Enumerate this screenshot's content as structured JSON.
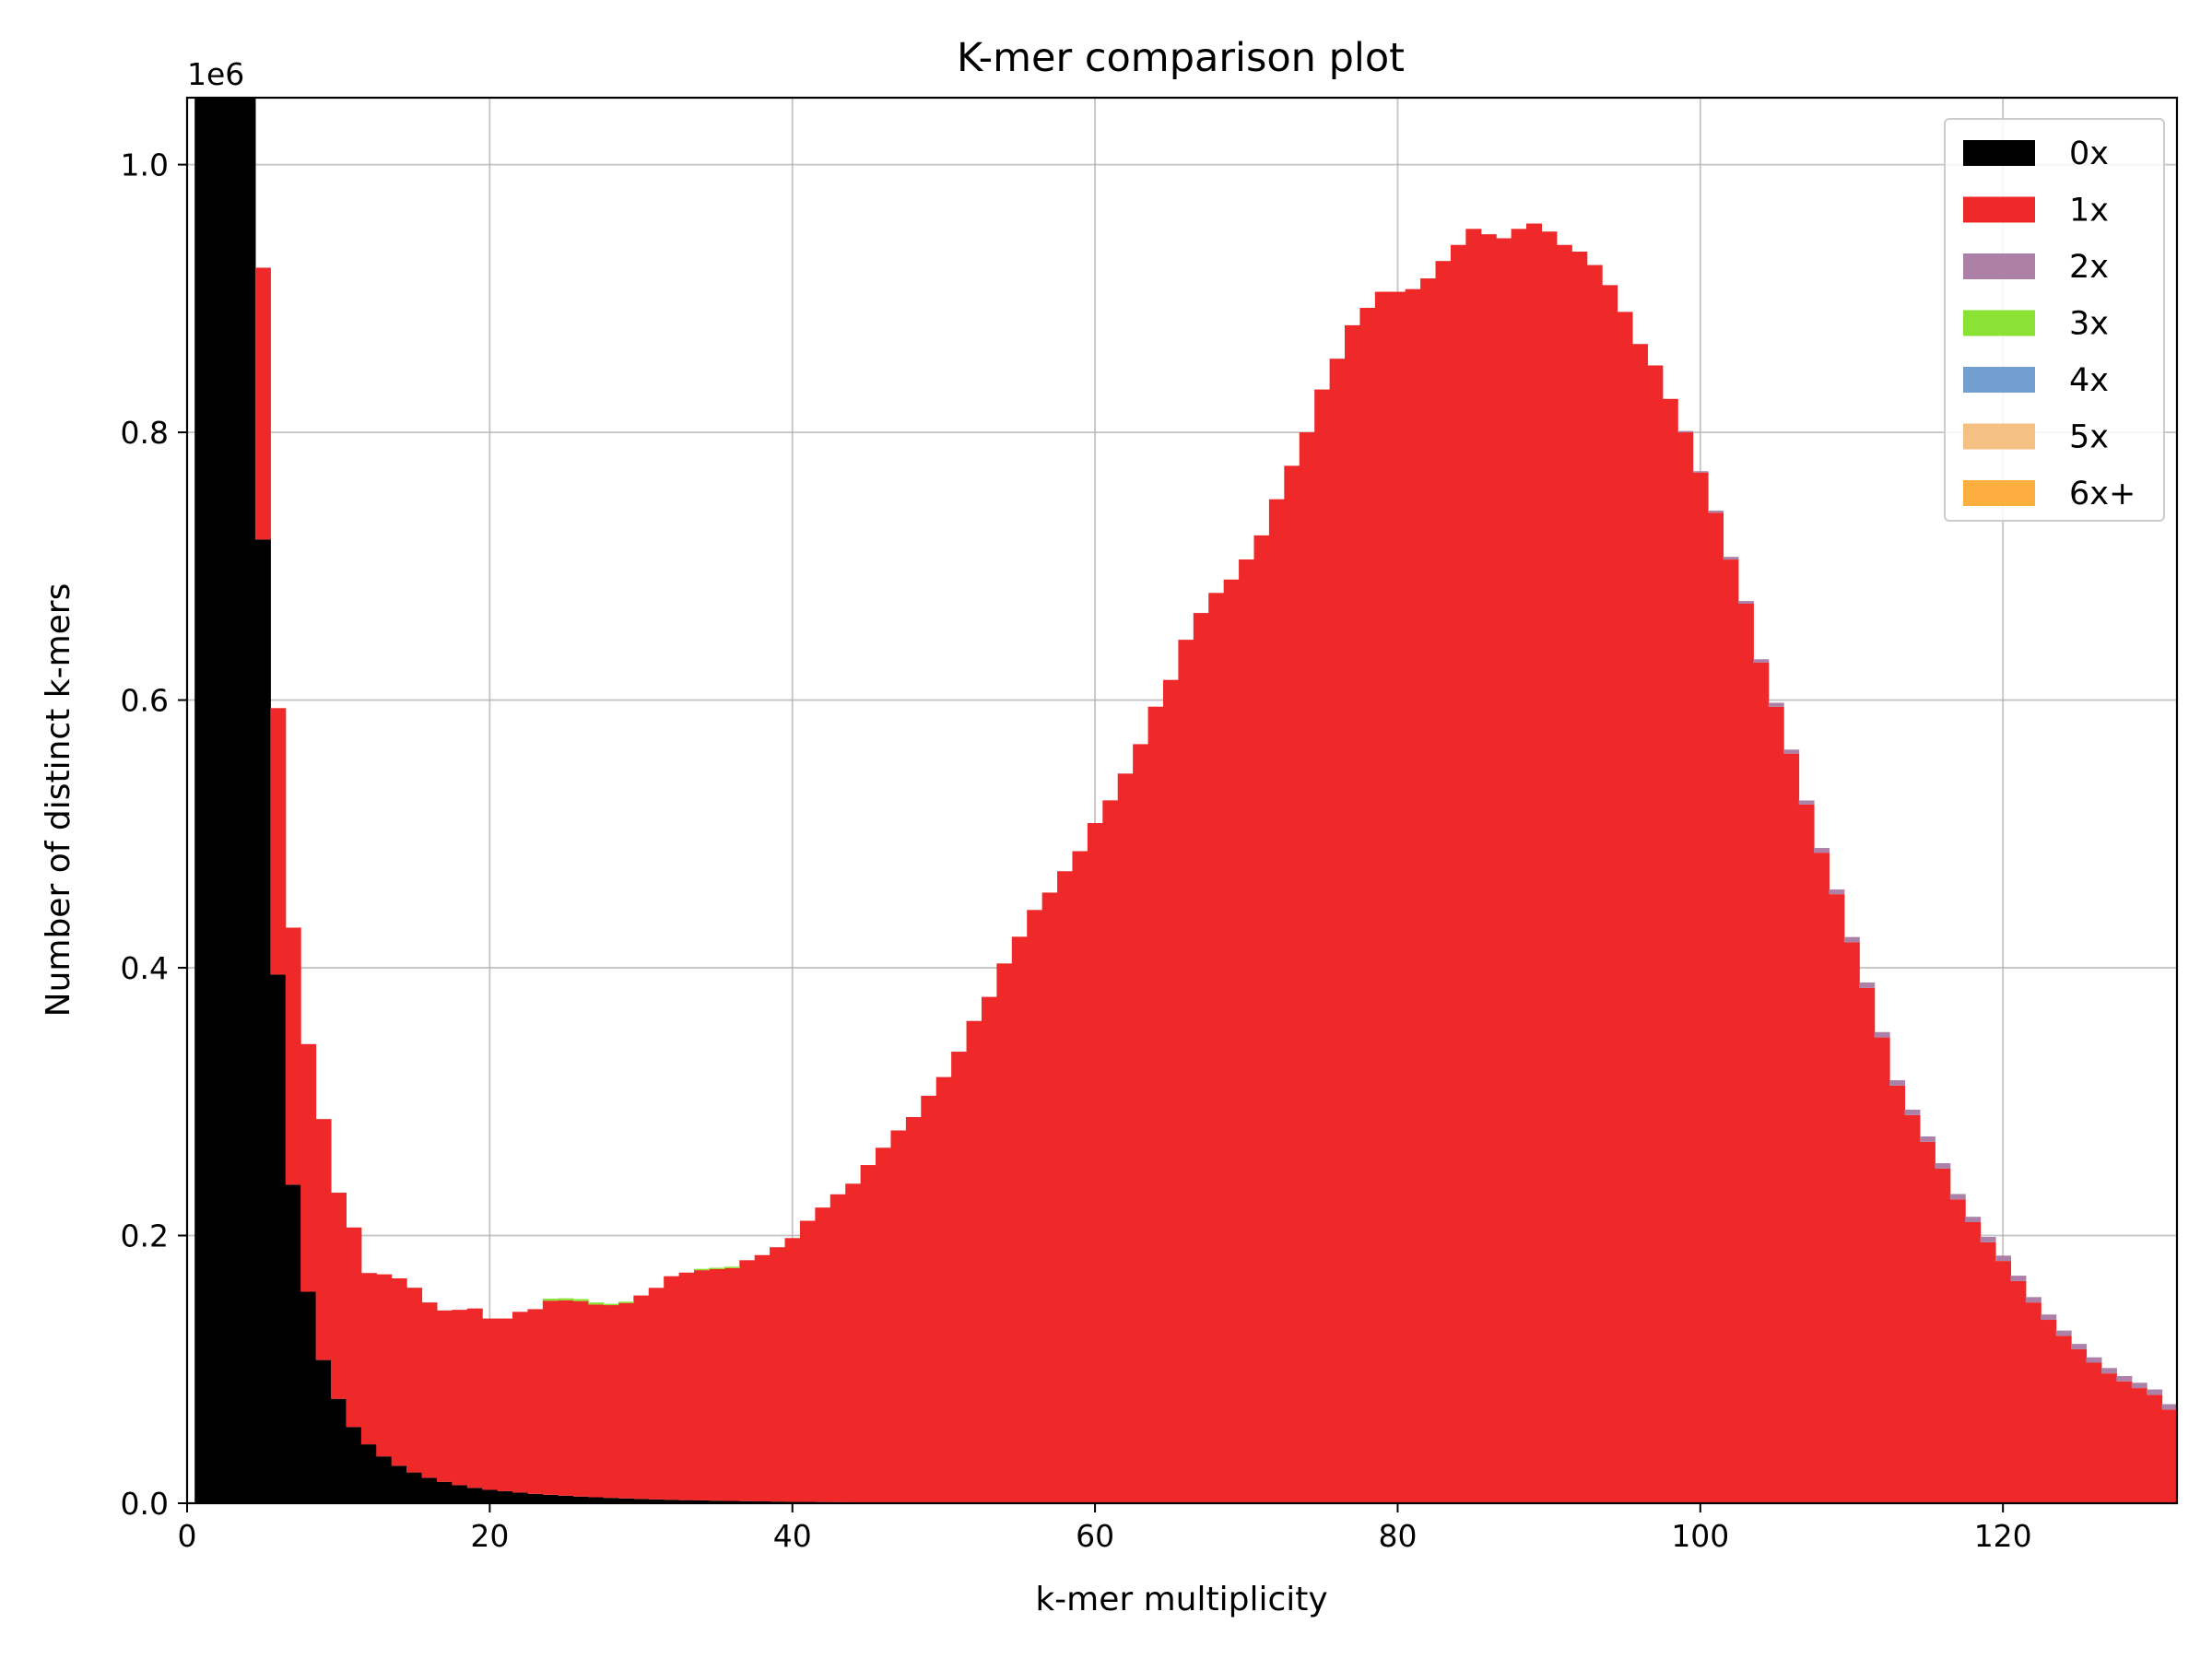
{
  "chart_data": {
    "type": "bar",
    "stacked": true,
    "title": "K-mer comparison plot",
    "xlabel": "k-mer multiplicity",
    "ylabel": "Number of distinct k-mers",
    "y_offset_label": "1e6",
    "xlim": [
      0,
      131.5
    ],
    "ylim": [
      0,
      1050000
    ],
    "xticks": [
      0,
      20,
      40,
      60,
      80,
      100,
      120
    ],
    "xtick_labels": [
      "0",
      "20",
      "40",
      "60",
      "80",
      "100",
      "120"
    ],
    "yticks": [
      0,
      200000,
      400000,
      600000,
      800000,
      1000000
    ],
    "ytick_labels": [
      "0.0",
      "0.2",
      "0.4",
      "0.6",
      "0.8",
      "1.0"
    ],
    "grid": true,
    "legend": {
      "placement": "top-right"
    },
    "bin_width": 1,
    "x": [
      1,
      2,
      3,
      4,
      5,
      6,
      7,
      8,
      9,
      10,
      11,
      12,
      13,
      14,
      15,
      16,
      17,
      18,
      19,
      20,
      21,
      22,
      23,
      24,
      25,
      26,
      27,
      28,
      29,
      30,
      31,
      32,
      33,
      34,
      35,
      36,
      37,
      38,
      39,
      40,
      41,
      42,
      43,
      44,
      45,
      46,
      47,
      48,
      49,
      50,
      51,
      52,
      53,
      54,
      55,
      56,
      57,
      58,
      59,
      60,
      61,
      62,
      63,
      64,
      65,
      66,
      67,
      68,
      69,
      70,
      71,
      72,
      73,
      74,
      75,
      76,
      77,
      78,
      79,
      80,
      81,
      82,
      83,
      84,
      85,
      86,
      87,
      88,
      89,
      90,
      91,
      92,
      93,
      94,
      95,
      96,
      97,
      98,
      99,
      100,
      101,
      102,
      103,
      104,
      105,
      106,
      107,
      108,
      109,
      110,
      111,
      112,
      113,
      114,
      115,
      116,
      117,
      118,
      119,
      120,
      121,
      122,
      123,
      124,
      125,
      126,
      127,
      128,
      129,
      130,
      131
    ],
    "series": [
      {
        "name": "0x",
        "color": "#000000",
        "values": [
          1050000,
          1050000,
          1050000,
          1050000,
          720000,
          395000,
          238000,
          158000,
          107000,
          78000,
          57000,
          44000,
          35000,
          28000,
          23000,
          19000,
          16000,
          13500,
          11500,
          10000,
          9000,
          8000,
          7000,
          6300,
          5600,
          5000,
          4500,
          4000,
          3600,
          3200,
          2900,
          2600,
          2300,
          2100,
          1900,
          1700,
          1550,
          1400,
          1250,
          1100,
          1000,
          900,
          800,
          720,
          650,
          580,
          520,
          470,
          420,
          380,
          340,
          300,
          270,
          240,
          210,
          190,
          170,
          150,
          130,
          110,
          100,
          90,
          80,
          70,
          60,
          55,
          50,
          45,
          40,
          35,
          30,
          28,
          25,
          22,
          20,
          18,
          16,
          14,
          12,
          10,
          9,
          8,
          7,
          6,
          5,
          5,
          4,
          4,
          3,
          3,
          3,
          2,
          2,
          2,
          2,
          2,
          1,
          1,
          1,
          1,
          1,
          1,
          1,
          1,
          1,
          1,
          1,
          1,
          1,
          1,
          1,
          1,
          1,
          1,
          1,
          1,
          1,
          1,
          1,
          1,
          1,
          1,
          1,
          1,
          1,
          1,
          1,
          1,
          1,
          1,
          1
        ]
      },
      {
        "name": "1x",
        "color": "#ef2929",
        "values": [
          0,
          0,
          0,
          0,
          203000,
          199000,
          192000,
          185000,
          180000,
          154000,
          149000,
          128000,
          136000,
          140000,
          138000,
          131000,
          128000,
          131000,
          134000,
          128000,
          129000,
          135000,
          138000,
          145000,
          146000,
          146000,
          144000,
          144000,
          146000,
          152000,
          158000,
          167000,
          170000,
          172000,
          173000,
          174000,
          180000,
          184000,
          190000,
          197000,
          210000,
          220000,
          230000,
          238000,
          252000,
          265000,
          278000,
          288000,
          304000,
          318000,
          337000,
          360000,
          378000,
          403000,
          423000,
          443000,
          456000,
          472000,
          487000,
          508000,
          525000,
          545000,
          567000,
          595000,
          615000,
          645000,
          665000,
          680000,
          690000,
          705000,
          723000,
          750000,
          775000,
          800000,
          832000,
          855000,
          880000,
          893000,
          905000,
          905000,
          907000,
          915000,
          928000,
          940000,
          952000,
          948000,
          945000,
          952000,
          956000,
          950000,
          940000,
          935000,
          925000,
          910000,
          890000,
          866000,
          850000,
          825000,
          800000,
          770000,
          740000,
          705000,
          672000,
          628000,
          595000,
          560000,
          522000,
          486000,
          455000,
          419000,
          385000,
          348000,
          312000,
          290000,
          270000,
          250000,
          227000,
          210000,
          195000,
          181000,
          166000,
          150000,
          137000,
          125000,
          115000,
          105000,
          97000,
          91000,
          86000,
          81000,
          70000
        ]
      },
      {
        "name": "2x",
        "color": "#ad81a7",
        "values": [
          0,
          0,
          0,
          0,
          0,
          0,
          0,
          0,
          0,
          0,
          0,
          0,
          0,
          0,
          0,
          0,
          0,
          0,
          0,
          0,
          0,
          0,
          0,
          0,
          0,
          0,
          0,
          0,
          0,
          0,
          0,
          0,
          0,
          0,
          0,
          0,
          0,
          0,
          0,
          0,
          0,
          0,
          0,
          0,
          0,
          0,
          0,
          0,
          0,
          0,
          0,
          0,
          0,
          0,
          0,
          0,
          0,
          0,
          0,
          0,
          0,
          0,
          0,
          0,
          0,
          0,
          0,
          0,
          0,
          0,
          0,
          0,
          0,
          0,
          0,
          0,
          0,
          0,
          0,
          0,
          0,
          0,
          0,
          0,
          0,
          0,
          0,
          0,
          0,
          0,
          0,
          0,
          0,
          0,
          0,
          0,
          0,
          0,
          1000,
          1000,
          1500,
          2000,
          2000,
          2500,
          3000,
          3000,
          3000,
          3500,
          3500,
          4000,
          4000,
          4000,
          4000,
          4000,
          4000,
          4000,
          4000,
          4000,
          4000,
          4000,
          4000,
          4000,
          4000,
          4000,
          4000,
          4000,
          4000,
          4000,
          4000,
          4000,
          4000
        ]
      },
      {
        "name": "3x",
        "color": "#8ae234",
        "values": [
          0,
          0,
          0,
          0,
          0,
          0,
          0,
          0,
          0,
          0,
          0,
          0,
          0,
          0,
          0,
          0,
          0,
          0,
          0,
          0,
          0,
          0,
          0,
          1500,
          1500,
          1500,
          1500,
          1000,
          1000,
          0,
          0,
          0,
          0,
          1000,
          1000,
          1000,
          0,
          0,
          0,
          0,
          0,
          0,
          0,
          0,
          0,
          0,
          0,
          0,
          0,
          0,
          0,
          0,
          0,
          0,
          0,
          0,
          0,
          0,
          0,
          0,
          0,
          0,
          0,
          0,
          0,
          0,
          0,
          0,
          0,
          0,
          0,
          0,
          0,
          0,
          0,
          0,
          0,
          0,
          0,
          0,
          0,
          0,
          0,
          0,
          0,
          0,
          0,
          0,
          0,
          0,
          0,
          0,
          0,
          0,
          0,
          0,
          0,
          0,
          0,
          0,
          0,
          0,
          0,
          0,
          0,
          0,
          0,
          0,
          0,
          0,
          0,
          0,
          0,
          0,
          0,
          0,
          0,
          0,
          0,
          0,
          0,
          0,
          0,
          0,
          0,
          0,
          0,
          0,
          0,
          0,
          0
        ]
      },
      {
        "name": "4x",
        "color": "#729fcf",
        "values": [
          0,
          0,
          0,
          0,
          0,
          0,
          0,
          0,
          0,
          0,
          0,
          0,
          0,
          0,
          0,
          0,
          0,
          0,
          0,
          0,
          0,
          0,
          0,
          0,
          0,
          0,
          0,
          0,
          0,
          0,
          0,
          0,
          0,
          0,
          0,
          0,
          0,
          0,
          0,
          0,
          0,
          0,
          0,
          0,
          0,
          0,
          0,
          0,
          0,
          0,
          0,
          0,
          0,
          0,
          0,
          0,
          0,
          0,
          0,
          0,
          0,
          0,
          0,
          0,
          0,
          0,
          0,
          0,
          0,
          0,
          0,
          0,
          0,
          0,
          0,
          0,
          0,
          0,
          0,
          0,
          0,
          0,
          0,
          0,
          0,
          0,
          0,
          0,
          0,
          0,
          0,
          0,
          0,
          0,
          0,
          0,
          0,
          0,
          0,
          0,
          0,
          0,
          0,
          0,
          0,
          0,
          0,
          0,
          0,
          0,
          0,
          0,
          0,
          0,
          0,
          0,
          0,
          0,
          0,
          0,
          0,
          0,
          0,
          0,
          0,
          0,
          0,
          0,
          0,
          0,
          0
        ]
      },
      {
        "name": "5x",
        "color": "#f4c083",
        "values": [
          0,
          0,
          0,
          0,
          0,
          0,
          0,
          0,
          0,
          0,
          0,
          0,
          0,
          0,
          0,
          0,
          0,
          0,
          0,
          0,
          0,
          0,
          0,
          0,
          0,
          0,
          0,
          0,
          0,
          0,
          0,
          0,
          0,
          0,
          0,
          0,
          0,
          0,
          0,
          0,
          0,
          0,
          0,
          0,
          0,
          0,
          0,
          0,
          0,
          0,
          0,
          0,
          0,
          0,
          0,
          0,
          0,
          0,
          0,
          0,
          0,
          0,
          0,
          0,
          0,
          0,
          0,
          0,
          0,
          0,
          0,
          0,
          0,
          0,
          0,
          0,
          0,
          0,
          0,
          0,
          0,
          0,
          0,
          0,
          0,
          0,
          0,
          0,
          0,
          0,
          0,
          0,
          0,
          0,
          0,
          0,
          0,
          0,
          0,
          0,
          0,
          0,
          0,
          0,
          0,
          0,
          0,
          0,
          0,
          0,
          0,
          0,
          0,
          0,
          0,
          0,
          0,
          0,
          0,
          0,
          0,
          0,
          0,
          0,
          0,
          0,
          0,
          0,
          0,
          0,
          0
        ]
      },
      {
        "name": "6x+",
        "color": "#fcaf3e",
        "values": [
          0,
          0,
          0,
          0,
          0,
          0,
          0,
          0,
          0,
          0,
          0,
          0,
          0,
          0,
          0,
          0,
          0,
          0,
          0,
          0,
          0,
          0,
          0,
          0,
          0,
          0,
          0,
          0,
          0,
          0,
          0,
          0,
          0,
          0,
          0,
          0,
          0,
          0,
          0,
          0,
          0,
          0,
          0,
          0,
          0,
          0,
          0,
          0,
          0,
          0,
          0,
          0,
          0,
          0,
          0,
          0,
          0,
          0,
          0,
          0,
          0,
          0,
          0,
          0,
          0,
          0,
          0,
          0,
          0,
          0,
          0,
          0,
          0,
          0,
          0,
          0,
          0,
          0,
          0,
          0,
          0,
          0,
          0,
          0,
          0,
          0,
          0,
          0,
          0,
          0,
          0,
          0,
          0,
          0,
          0,
          0,
          0,
          0,
          0,
          0,
          0,
          0,
          0,
          0,
          0,
          0,
          0,
          0,
          0,
          0,
          0,
          0,
          0,
          0,
          0,
          0,
          0,
          0,
          0,
          0,
          0,
          0,
          0,
          0,
          0,
          0,
          0,
          0,
          0,
          0,
          0
        ]
      }
    ]
  }
}
